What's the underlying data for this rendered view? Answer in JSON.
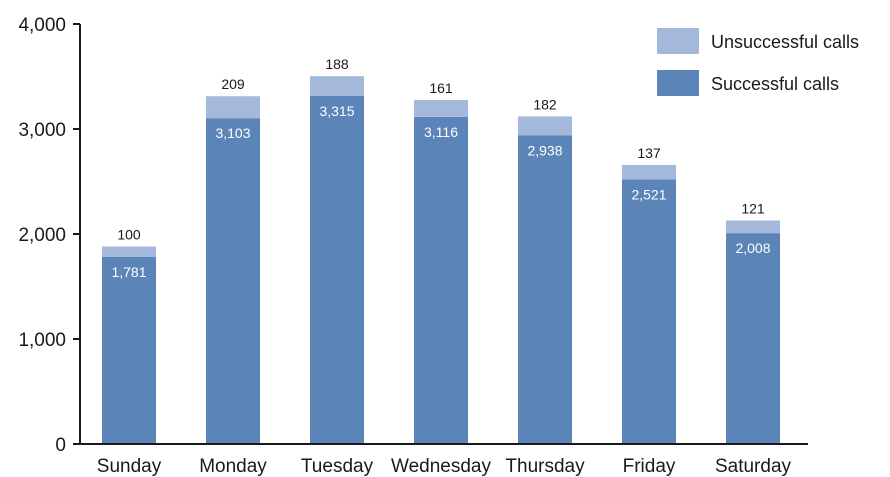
{
  "chart_data": {
    "type": "bar",
    "stacked": true,
    "categories": [
      "Sunday",
      "Monday",
      "Tuesday",
      "Wednesday",
      "Thursday",
      "Friday",
      "Saturday"
    ],
    "series": [
      {
        "name": "Successful calls",
        "values": [
          1781,
          3103,
          3315,
          3116,
          2938,
          2521,
          2008
        ],
        "color": "#5b85b8"
      },
      {
        "name": "Unsuccessful calls",
        "values": [
          100,
          209,
          188,
          161,
          182,
          137,
          121
        ],
        "color": "#a3b8da"
      }
    ],
    "title": "",
    "xlabel": "",
    "ylabel": "",
    "ylim": [
      0,
      4000
    ],
    "yticks": [
      "0",
      "1,000",
      "2,000",
      "3,000",
      "4,000"
    ],
    "ytick_values": [
      0,
      1000,
      2000,
      3000,
      4000
    ],
    "grid": false,
    "legend_position": "top-right",
    "legend_order": [
      "Unsuccessful calls",
      "Successful calls"
    ]
  }
}
